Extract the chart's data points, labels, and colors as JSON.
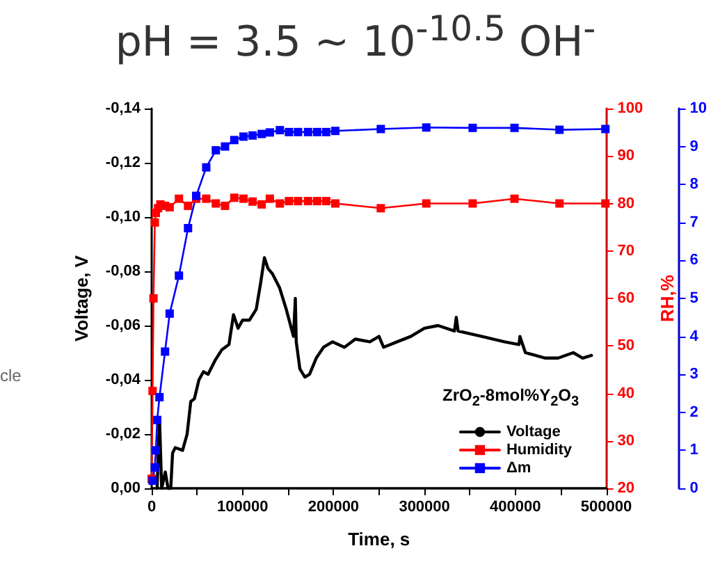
{
  "chart_data": {
    "type": "line",
    "title": "pH = 3.5 ~ 10$^{-10.5}$ OH$^{-}$",
    "xlabel": "Time, s",
    "ylabel": "Voltage, V",
    "y2label": "RH,%",
    "annotations": [
      "ZrO$_{2}$-8mol%Y$_{2}$O$_{3}$",
      "cle"
    ],
    "xlim": [
      0,
      500000
    ],
    "xticks": [
      0,
      {
        "value": 50000,
        "label": null
      },
      100000,
      {
        "value": 150000,
        "label": null
      },
      200000,
      {
        "value": 250000,
        "label": null
      },
      300000,
      {
        "value": 350000,
        "label": null
      },
      400000,
      {
        "value": 450000,
        "label": null
      },
      500000
    ],
    "ylim": [
      0,
      -0.14
    ],
    "yticks": [
      {
        "value": 0,
        "label": "0,00"
      },
      {
        "value": -0.02,
        "label": "-0,02"
      },
      {
        "value": -0.04,
        "label": "-0,04"
      },
      {
        "value": -0.06,
        "label": "-0,06"
      },
      {
        "value": -0.08,
        "label": "-0,08"
      },
      {
        "value": -0.1,
        "label": "-0,10"
      },
      {
        "value": -0.12,
        "label": "-0,12"
      },
      {
        "value": -0.14,
        "label": "-0,14"
      }
    ],
    "y2lim": [
      20,
      100
    ],
    "y2ticks": [
      20,
      30,
      40,
      50,
      60,
      70,
      80,
      90,
      100
    ],
    "y3lim": [
      0,
      10
    ],
    "y3ticks": [
      0,
      1,
      2,
      3,
      4,
      5,
      6,
      7,
      8,
      9,
      10
    ],
    "grid": false,
    "legend": "bottom right",
    "marker": "square",
    "line_style": "solid",
    "series": [
      {
        "name": "Voltage",
        "color": "#000000",
        "marker": "none",
        "x": [
          6000,
          8600,
          11000,
          15000,
          18000,
          21000,
          23000,
          26000,
          34000,
          39000,
          43000,
          47000,
          52000,
          57000,
          62000,
          69500,
          77000,
          85000,
          90000,
          95000,
          100000,
          107600,
          115000,
          120000,
          124000,
          128000,
          133000,
          140600,
          148000,
          156000,
          158000,
          159000,
          163000,
          168500,
          173600,
          181000,
          189000,
          199000,
          212000,
          224000,
          240000,
          250000,
          255000,
          270000,
          285000,
          300000,
          315000,
          333000,
          335000,
          337000,
          363000,
          388000,
          404000,
          405000,
          411000,
          433000,
          447000,
          463700,
          474000,
          483700
        ],
        "values": [
          0,
          -0.026,
          0,
          -0.006,
          0,
          0,
          -0.013,
          -0.015,
          -0.014,
          -0.02,
          -0.032,
          -0.033,
          -0.04,
          -0.043,
          -0.042,
          -0.047,
          -0.051,
          -0.053,
          -0.064,
          -0.059,
          -0.062,
          -0.062,
          -0.066,
          -0.076,
          -0.085,
          -0.081,
          -0.079,
          -0.074,
          -0.066,
          -0.056,
          -0.07,
          -0.054,
          -0.044,
          -0.041,
          -0.042,
          -0.048,
          -0.052,
          -0.054,
          -0.052,
          -0.055,
          -0.054,
          -0.056,
          -0.052,
          -0.054,
          -0.056,
          -0.059,
          -0.06,
          -0.058,
          -0.063,
          -0.058,
          -0.056,
          -0.054,
          -0.053,
          -0.056,
          -0.05,
          -0.048,
          -0.048,
          -0.05,
          -0.048,
          -0.049
        ]
      },
      {
        "name": "Humidity",
        "color": "#ff0000",
        "axis": "y2",
        "x": [
          0,
          1000,
          2000,
          3500,
          4600,
          7000,
          9600,
          14700,
          19800,
          30000,
          40000,
          49000,
          60000,
          70600,
          80700,
          90900,
          101000,
          111000,
          121000,
          130000,
          141000,
          151000,
          161000,
          172000,
          182000,
          192000,
          202000,
          252000,
          302000,
          353000,
          399000,
          448500,
          499000
        ],
        "values": [
          22,
          40.5,
          60,
          76,
          78,
          79,
          79.8,
          79.5,
          79.2,
          81,
          79.5,
          81,
          81,
          80,
          79.5,
          81.2,
          81,
          80.4,
          79.8,
          81,
          80,
          80.5,
          80.5,
          80.5,
          80.5,
          80.5,
          80,
          79,
          80,
          80,
          81,
          80,
          80
        ]
      },
      {
        "name": "Δm",
        "color": "#0000ff",
        "axis": "y3",
        "x": [
          1000,
          3500,
          4600,
          6100,
          8600,
          14700,
          19800,
          30000,
          40000,
          49000,
          60000,
          70600,
          80700,
          90900,
          101000,
          111000,
          121000,
          130000,
          141000,
          151000,
          161000,
          172000,
          182000,
          192000,
          202000,
          252000,
          302000,
          353000,
          399000,
          448500,
          499000
        ],
        "values": [
          0.2,
          0.55,
          1.0,
          1.8,
          2.4,
          3.6,
          4.6,
          5.6,
          6.85,
          7.7,
          8.45,
          8.9,
          9.0,
          9.17,
          9.26,
          9.29,
          9.33,
          9.37,
          9.43,
          9.38,
          9.38,
          9.38,
          9.38,
          9.38,
          9.41,
          9.46,
          9.5,
          9.49,
          9.49,
          9.44,
          9.46
        ]
      }
    ]
  }
}
